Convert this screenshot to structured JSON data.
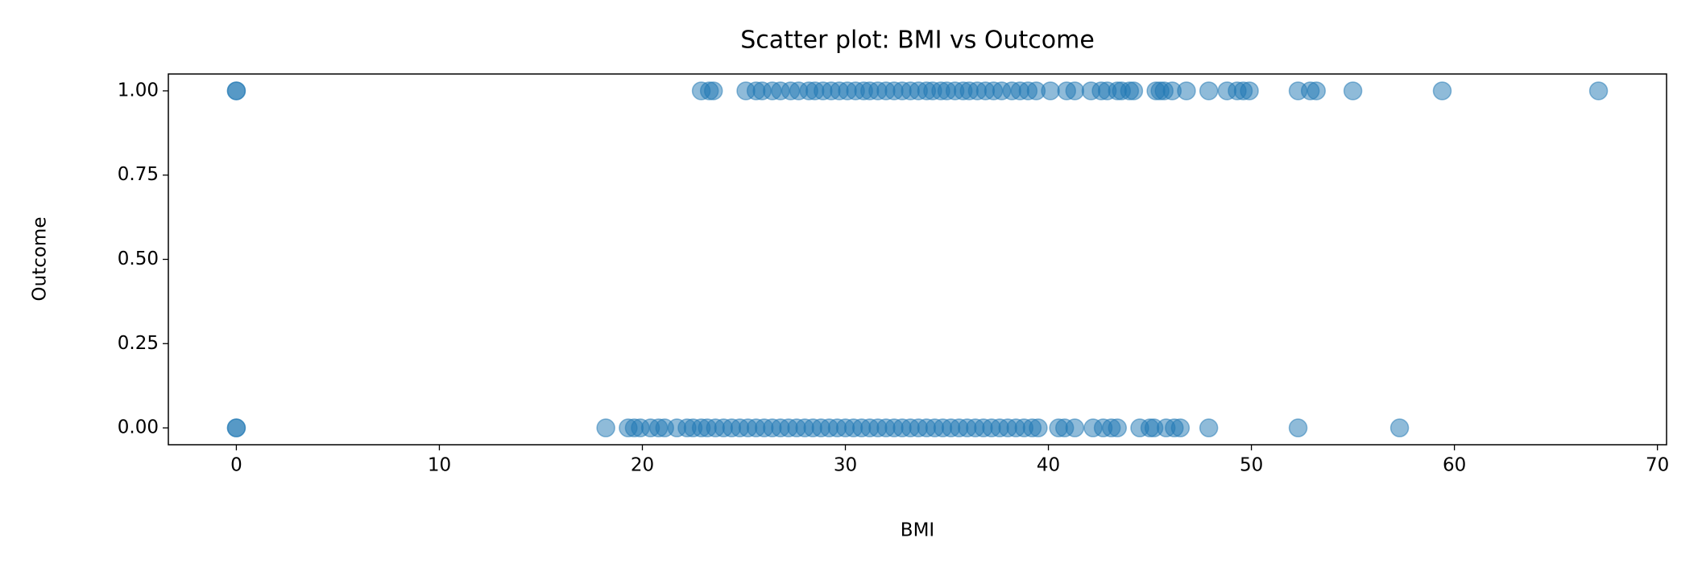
{
  "chart_data": {
    "type": "scatter",
    "title": "Scatter plot: BMI vs Outcome",
    "xlabel": "BMI",
    "ylabel": "Outcome",
    "xlim": [
      -3.35,
      70.45
    ],
    "ylim": [
      -0.05,
      1.05
    ],
    "xticks": [
      0,
      10,
      20,
      30,
      40,
      50,
      60,
      70
    ],
    "yticks": [
      {
        "value": 0,
        "label": "0.00"
      },
      {
        "value": 0.25,
        "label": "0.25"
      },
      {
        "value": 0.5,
        "label": "0.50"
      },
      {
        "value": 0.75,
        "label": "0.75"
      },
      {
        "value": 1,
        "label": "1.00"
      }
    ],
    "alpha": 0.5,
    "series": [
      {
        "color": "#1f77b4",
        "x": [
          0,
          0,
          22.9,
          23.3,
          23.5,
          25.1,
          25.6,
          25.9,
          26.4,
          26.8,
          27.3,
          27.7,
          28.2,
          28.5,
          28.9,
          29.3,
          29.7,
          30.1,
          30.5,
          30.9,
          31.2,
          31.6,
          32,
          32.4,
          32.8,
          33.2,
          33.6,
          34,
          34.3,
          34.7,
          35,
          35.4,
          35.8,
          36.1,
          36.5,
          36.9,
          37.3,
          37.7,
          38.2,
          38.6,
          39,
          39.4,
          40.1,
          40.9,
          41.3,
          42.1,
          42.6,
          42.9,
          43.4,
          43.6,
          44,
          44.2,
          45.3,
          45.5,
          45.7,
          46.1,
          46.8,
          47.9,
          48.8,
          49.3,
          49.6,
          49.9,
          52.3,
          52.9,
          53.2,
          55,
          59.4,
          67.1
        ],
        "values": [
          1,
          1,
          1,
          1,
          1,
          1,
          1,
          1,
          1,
          1,
          1,
          1,
          1,
          1,
          1,
          1,
          1,
          1,
          1,
          1,
          1,
          1,
          1,
          1,
          1,
          1,
          1,
          1,
          1,
          1,
          1,
          1,
          1,
          1,
          1,
          1,
          1,
          1,
          1,
          1,
          1,
          1,
          1,
          1,
          1,
          1,
          1,
          1,
          1,
          1,
          1,
          1,
          1,
          1,
          1,
          1,
          1,
          1,
          1,
          1,
          1,
          1,
          1,
          1,
          1,
          1,
          1,
          1
        ]
      },
      {
        "color": "#1f77b4",
        "x": [
          0,
          0,
          18.2,
          19.3,
          19.6,
          19.9,
          20.4,
          20.8,
          21.1,
          21.7,
          22.2,
          22.5,
          22.9,
          23.2,
          23.6,
          24,
          24.4,
          24.8,
          25.2,
          25.6,
          26,
          26.4,
          26.8,
          27.2,
          27.6,
          28,
          28.4,
          28.8,
          29.2,
          29.6,
          30,
          30.4,
          30.8,
          31.2,
          31.6,
          32,
          32.4,
          32.8,
          33.2,
          33.6,
          34,
          34.4,
          34.8,
          35.2,
          35.6,
          36,
          36.4,
          36.8,
          37.2,
          37.6,
          38,
          38.4,
          38.8,
          39.2,
          39.5,
          40.5,
          40.8,
          41.3,
          42.2,
          42.7,
          43.1,
          43.4,
          44.5,
          45,
          45.2,
          45.8,
          46.2,
          46.5,
          47.9,
          52.3,
          57.3
        ],
        "values": [
          0,
          0,
          0,
          0,
          0,
          0,
          0,
          0,
          0,
          0,
          0,
          0,
          0,
          0,
          0,
          0,
          0,
          0,
          0,
          0,
          0,
          0,
          0,
          0,
          0,
          0,
          0,
          0,
          0,
          0,
          0,
          0,
          0,
          0,
          0,
          0,
          0,
          0,
          0,
          0,
          0,
          0,
          0,
          0,
          0,
          0,
          0,
          0,
          0,
          0,
          0,
          0,
          0,
          0,
          0,
          0,
          0,
          0,
          0,
          0,
          0,
          0,
          0,
          0,
          0,
          0,
          0,
          0,
          0,
          0,
          0
        ]
      }
    ]
  }
}
